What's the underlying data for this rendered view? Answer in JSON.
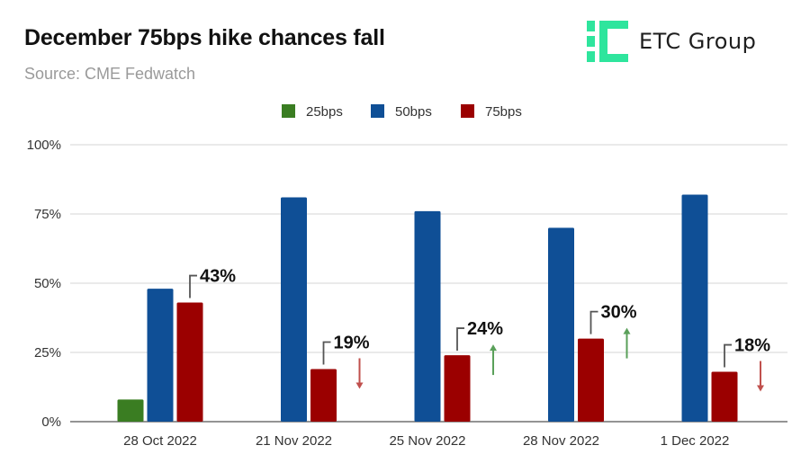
{
  "header": {
    "title": "December 75bps hike chances fall",
    "subtitle": "Source: CME Fedwatch",
    "logo_text": "ETC Group",
    "logo_color": "#2ee59d"
  },
  "chart_data": {
    "type": "bar",
    "categories": [
      "28 Oct 2022",
      "21 Nov 2022",
      "25 Nov 2022",
      "28 Nov 2022",
      "1 Dec 2022"
    ],
    "series": [
      {
        "name": "25bps",
        "color": "#3a7d22",
        "values": [
          8,
          null,
          null,
          null,
          null
        ]
      },
      {
        "name": "50bps",
        "color": "#0f4f96",
        "values": [
          48,
          81,
          76,
          70,
          82
        ]
      },
      {
        "name": "75bps",
        "color": "#9b0000",
        "values": [
          43,
          19,
          24,
          30,
          18
        ]
      }
    ],
    "ylim": [
      0,
      100
    ],
    "yticks": [
      "0%",
      "25%",
      "50%",
      "75%",
      "100%"
    ],
    "grid": true,
    "legend": "top-center",
    "annotations": [
      {
        "label": "43%",
        "arrow": "none"
      },
      {
        "label": "19%",
        "arrow": "down"
      },
      {
        "label": "24%",
        "arrow": "up"
      },
      {
        "label": "30%",
        "arrow": "up"
      },
      {
        "label": "18%",
        "arrow": "down"
      }
    ],
    "arrow_colors": {
      "up": "#5aa05a",
      "down": "#c0504d"
    }
  }
}
